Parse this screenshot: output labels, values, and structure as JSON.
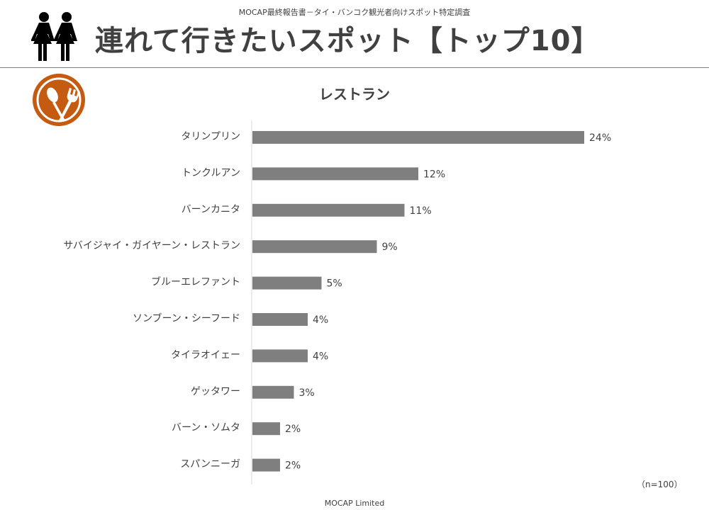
{
  "header": {
    "report_title": "MOCAP最終報告書－タイ・バンコク観光者向けスポット特定調査",
    "page_title": "連れて行きたいスポット【トップ10】"
  },
  "icons": {
    "people": "couple-icon",
    "restaurant": "spoon-fork-icon"
  },
  "colors": {
    "bar": "#7f7f7f",
    "icon_orange": "#c55a11",
    "text": "#404040"
  },
  "chart_data": {
    "type": "bar",
    "orientation": "horizontal",
    "title": "レストラン",
    "categories": [
      "タリンプリン",
      "トンクルアン",
      "バーンカニタ",
      "サバイジャイ・ガイヤーン・レストラン",
      "ブルーエレファント",
      "ソンブーン・シーフード",
      "タイラオイェー",
      "ゲッタワー",
      "バーン・ソムタ",
      "スパンニーガ"
    ],
    "values": [
      24,
      12,
      11,
      9,
      5,
      4,
      4,
      3,
      2,
      2
    ],
    "value_labels": [
      "24%",
      "12%",
      "11%",
      "9%",
      "5%",
      "4%",
      "4%",
      "3%",
      "2%",
      "2%"
    ],
    "unit": "%",
    "xlim": [
      0,
      24
    ],
    "grid": false,
    "legend": "none"
  },
  "note": {
    "sample_size": "（n=100）"
  },
  "footer": {
    "company": "MOCAP Limited"
  }
}
